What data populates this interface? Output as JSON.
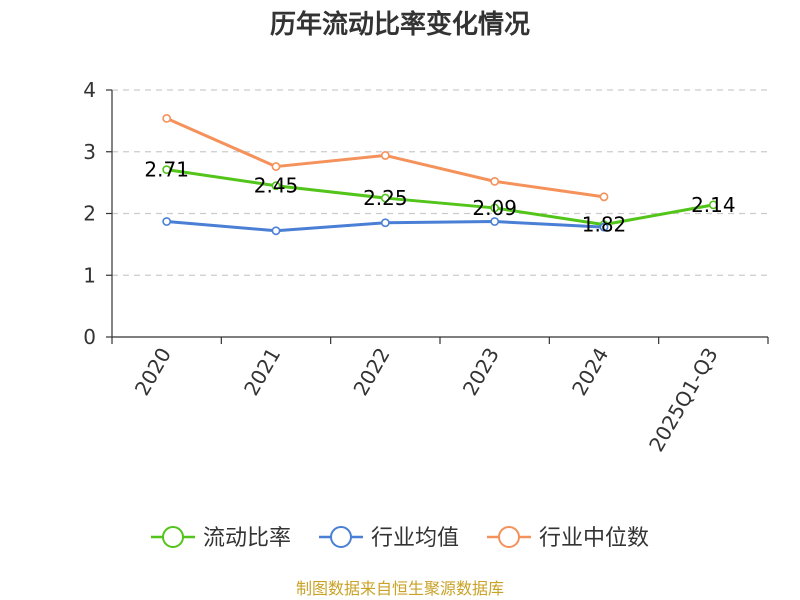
{
  "chart_data": {
    "type": "line",
    "title": "历年流动比率变化情况",
    "categories": [
      "2020",
      "2021",
      "2022",
      "2023",
      "2024",
      "2025Q1-Q3"
    ],
    "ylim": [
      0,
      4
    ],
    "yticks": [
      0,
      1,
      2,
      3,
      4
    ],
    "grid": true,
    "legend_position": "bottom",
    "series": [
      {
        "name": "流动比率",
        "color": "#52c41a",
        "values": [
          2.71,
          2.45,
          2.25,
          2.09,
          1.82,
          2.14
        ],
        "labels": [
          "2.71",
          "2.45",
          "2.25",
          "2.09",
          "1.82",
          "2.14"
        ]
      },
      {
        "name": "行业均值",
        "color": "#4a7fd6",
        "values": [
          1.87,
          1.72,
          1.85,
          1.87,
          1.78,
          null
        ]
      },
      {
        "name": "行业中位数",
        "color": "#f5915a",
        "values": [
          3.54,
          2.76,
          2.94,
          2.52,
          2.27,
          null
        ]
      }
    ]
  },
  "source": {
    "text": "制图数据来自恒生聚源数据库",
    "color": "#c9a227"
  }
}
